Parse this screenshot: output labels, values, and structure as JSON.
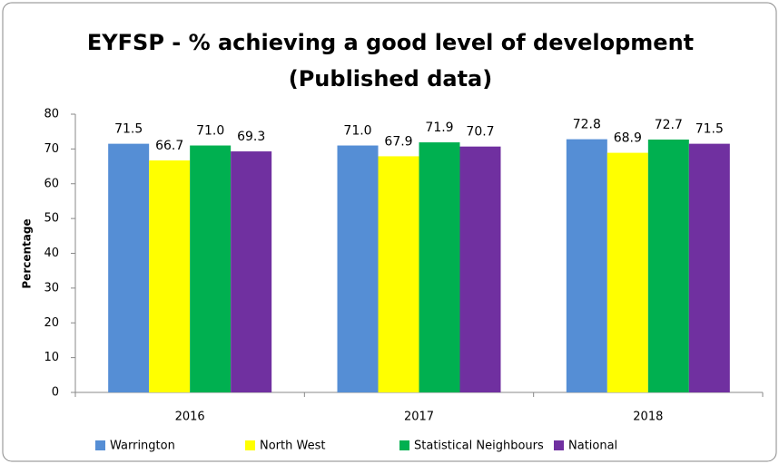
{
  "chart_data": {
    "type": "bar",
    "title": [
      "EYFSP - % achieving a good level of development",
      "(Published data)"
    ],
    "y_label": "Percentage",
    "categories": [
      "2016",
      "2017",
      "2018"
    ],
    "series": [
      {
        "name": "Warrington",
        "color": "#558ed5",
        "values": [
          71.5,
          71,
          72.8
        ],
        "value_labels": [
          "71.5",
          "71.0",
          "72.8"
        ]
      },
      {
        "name": "North West",
        "color": "#ffff00",
        "values": [
          66.7,
          67.9,
          68.9
        ],
        "value_labels": [
          "66.7",
          "67.9",
          "68.9"
        ]
      },
      {
        "name": "Statistical Neighbours",
        "color": "#00b050",
        "values": [
          71,
          71.9,
          72.7
        ],
        "value_labels": [
          "71.0",
          "71.9",
          "72.7"
        ]
      },
      {
        "name": "National",
        "color": "#7030a0",
        "values": [
          69.3,
          70.7,
          71.5
        ],
        "value_labels": [
          "69.3",
          "70.7",
          "71.5"
        ]
      }
    ],
    "ylim": [
      0,
      80
    ],
    "yticks": [
      0,
      10,
      20,
      30,
      40,
      50,
      60,
      70,
      80
    ],
    "grid": false,
    "legend": "bottom"
  }
}
